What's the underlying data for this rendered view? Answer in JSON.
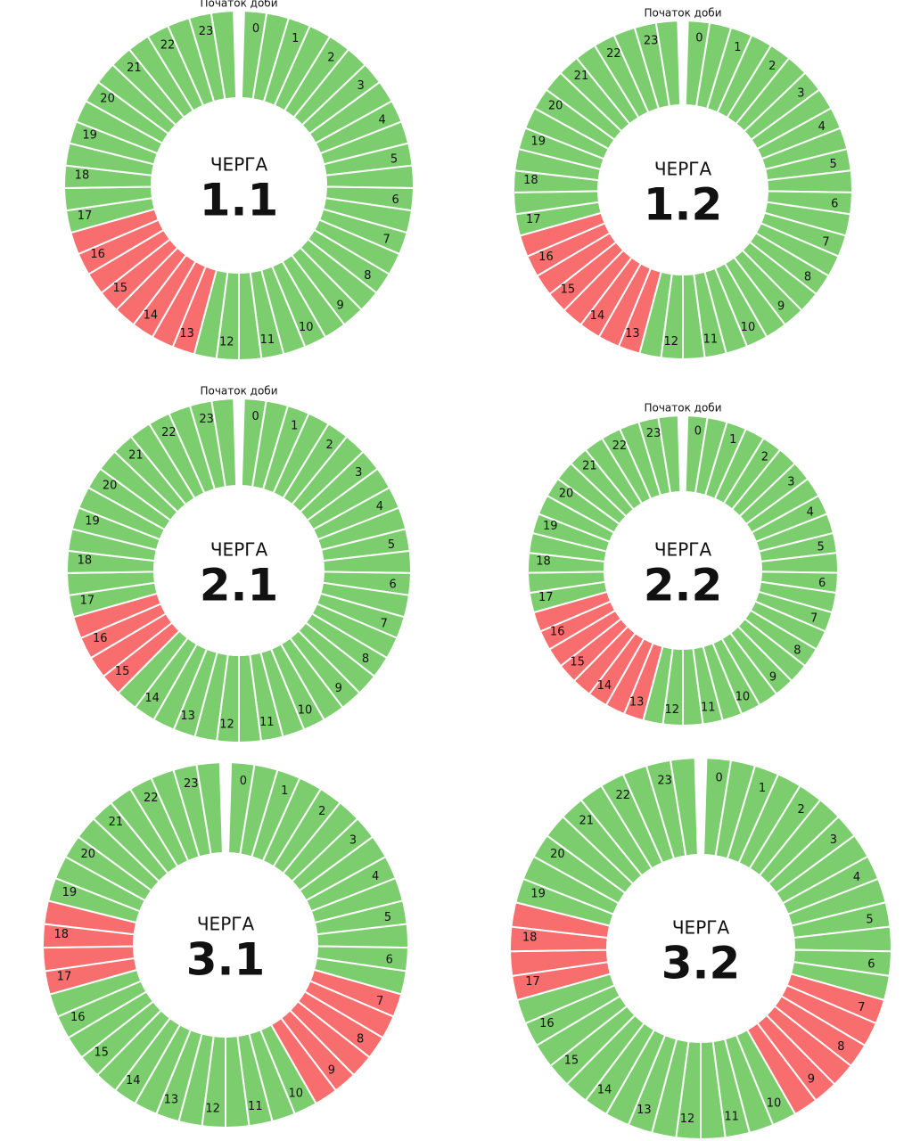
{
  "chart_data": [
    {
      "type": "donut",
      "subtitle": "Початок доби",
      "heading": "ЧЕРГА",
      "label": "1.1",
      "categories": [
        "0",
        "1",
        "2",
        "3",
        "4",
        "5",
        "6",
        "7",
        "8",
        "9",
        "10",
        "11",
        "12",
        "13",
        "14",
        "15",
        "16",
        "17",
        "18",
        "19",
        "20",
        "21",
        "22",
        "23"
      ],
      "colors": [
        "#7ccd6e",
        "#7ccd6e",
        "#7ccd6e",
        "#7ccd6e",
        "#7ccd6e",
        "#7ccd6e",
        "#7ccd6e",
        "#7ccd6e",
        "#7ccd6e",
        "#7ccd6e",
        "#7ccd6e",
        "#7ccd6e",
        "#7ccd6e",
        "#f86d6d",
        "#f86d6d",
        "#f86d6d",
        "#f86d6d",
        "#7ccd6e",
        "#7ccd6e",
        "#7ccd6e",
        "#7ccd6e",
        "#7ccd6e",
        "#7ccd6e",
        "#7ccd6e"
      ]
    },
    {
      "type": "donut",
      "subtitle": "Початок доби",
      "heading": "ЧЕРГА",
      "label": "1.2",
      "categories": [
        "0",
        "1",
        "2",
        "3",
        "4",
        "5",
        "6",
        "7",
        "8",
        "9",
        "10",
        "11",
        "12",
        "13",
        "14",
        "15",
        "16",
        "17",
        "18",
        "19",
        "20",
        "21",
        "22",
        "23"
      ],
      "colors": [
        "#7ccd6e",
        "#7ccd6e",
        "#7ccd6e",
        "#7ccd6e",
        "#7ccd6e",
        "#7ccd6e",
        "#7ccd6e",
        "#7ccd6e",
        "#7ccd6e",
        "#7ccd6e",
        "#7ccd6e",
        "#7ccd6e",
        "#7ccd6e",
        "#f86d6d",
        "#f86d6d",
        "#f86d6d",
        "#f86d6d",
        "#7ccd6e",
        "#7ccd6e",
        "#7ccd6e",
        "#7ccd6e",
        "#7ccd6e",
        "#7ccd6e",
        "#7ccd6e"
      ]
    },
    {
      "type": "donut",
      "subtitle": "Початок доби",
      "heading": "ЧЕРГА",
      "label": "2.1",
      "categories": [
        "0",
        "1",
        "2",
        "3",
        "4",
        "5",
        "6",
        "7",
        "8",
        "9",
        "10",
        "11",
        "12",
        "13",
        "14",
        "15",
        "16",
        "17",
        "18",
        "19",
        "20",
        "21",
        "22",
        "23"
      ],
      "colors": [
        "#7ccd6e",
        "#7ccd6e",
        "#7ccd6e",
        "#7ccd6e",
        "#7ccd6e",
        "#7ccd6e",
        "#7ccd6e",
        "#7ccd6e",
        "#7ccd6e",
        "#7ccd6e",
        "#7ccd6e",
        "#7ccd6e",
        "#7ccd6e",
        "#7ccd6e",
        "#7ccd6e",
        "#f86d6d",
        "#f86d6d",
        "#7ccd6e",
        "#7ccd6e",
        "#7ccd6e",
        "#7ccd6e",
        "#7ccd6e",
        "#7ccd6e",
        "#7ccd6e"
      ]
    },
    {
      "type": "donut",
      "subtitle": "Початок доби",
      "heading": "ЧЕРГА",
      "label": "2.2",
      "categories": [
        "0",
        "1",
        "2",
        "3",
        "4",
        "5",
        "6",
        "7",
        "8",
        "9",
        "10",
        "11",
        "12",
        "13",
        "14",
        "15",
        "16",
        "17",
        "18",
        "19",
        "20",
        "21",
        "22",
        "23"
      ],
      "colors": [
        "#7ccd6e",
        "#7ccd6e",
        "#7ccd6e",
        "#7ccd6e",
        "#7ccd6e",
        "#7ccd6e",
        "#7ccd6e",
        "#7ccd6e",
        "#7ccd6e",
        "#7ccd6e",
        "#7ccd6e",
        "#7ccd6e",
        "#7ccd6e",
        "#f86d6d",
        "#f86d6d",
        "#f86d6d",
        "#f86d6d",
        "#7ccd6e",
        "#7ccd6e",
        "#7ccd6e",
        "#7ccd6e",
        "#7ccd6e",
        "#7ccd6e",
        "#7ccd6e"
      ]
    },
    {
      "type": "donut",
      "heading": "ЧЕРГА",
      "label": "3.1",
      "categories": [
        "0",
        "1",
        "2",
        "3",
        "4",
        "5",
        "6",
        "7",
        "8",
        "9",
        "10",
        "11",
        "12",
        "13",
        "14",
        "15",
        "16",
        "17",
        "18",
        "19",
        "20",
        "21",
        "22",
        "23"
      ],
      "colors": [
        "#7ccd6e",
        "#7ccd6e",
        "#7ccd6e",
        "#7ccd6e",
        "#7ccd6e",
        "#7ccd6e",
        "#7ccd6e",
        "#f86d6d",
        "#f86d6d",
        "#f86d6d",
        "#7ccd6e",
        "#7ccd6e",
        "#7ccd6e",
        "#7ccd6e",
        "#7ccd6e",
        "#7ccd6e",
        "#7ccd6e",
        "#f86d6d",
        "#f86d6d",
        "#7ccd6e",
        "#7ccd6e",
        "#7ccd6e",
        "#7ccd6e",
        "#7ccd6e"
      ]
    },
    {
      "type": "donut",
      "heading": "ЧЕРГА",
      "label": "3.2",
      "categories": [
        "0",
        "1",
        "2",
        "3",
        "4",
        "5",
        "6",
        "7",
        "8",
        "9",
        "10",
        "11",
        "12",
        "13",
        "14",
        "15",
        "16",
        "17",
        "18",
        "19",
        "20",
        "21",
        "22",
        "23"
      ],
      "colors": [
        "#7ccd6e",
        "#7ccd6e",
        "#7ccd6e",
        "#7ccd6e",
        "#7ccd6e",
        "#7ccd6e",
        "#7ccd6e",
        "#f86d6d",
        "#f86d6d",
        "#f86d6d",
        "#7ccd6e",
        "#7ccd6e",
        "#7ccd6e",
        "#7ccd6e",
        "#7ccd6e",
        "#7ccd6e",
        "#7ccd6e",
        "#f86d6d",
        "#f86d6d",
        "#7ccd6e",
        "#7ccd6e",
        "#7ccd6e",
        "#7ccd6e",
        "#7ccd6e"
      ]
    }
  ]
}
